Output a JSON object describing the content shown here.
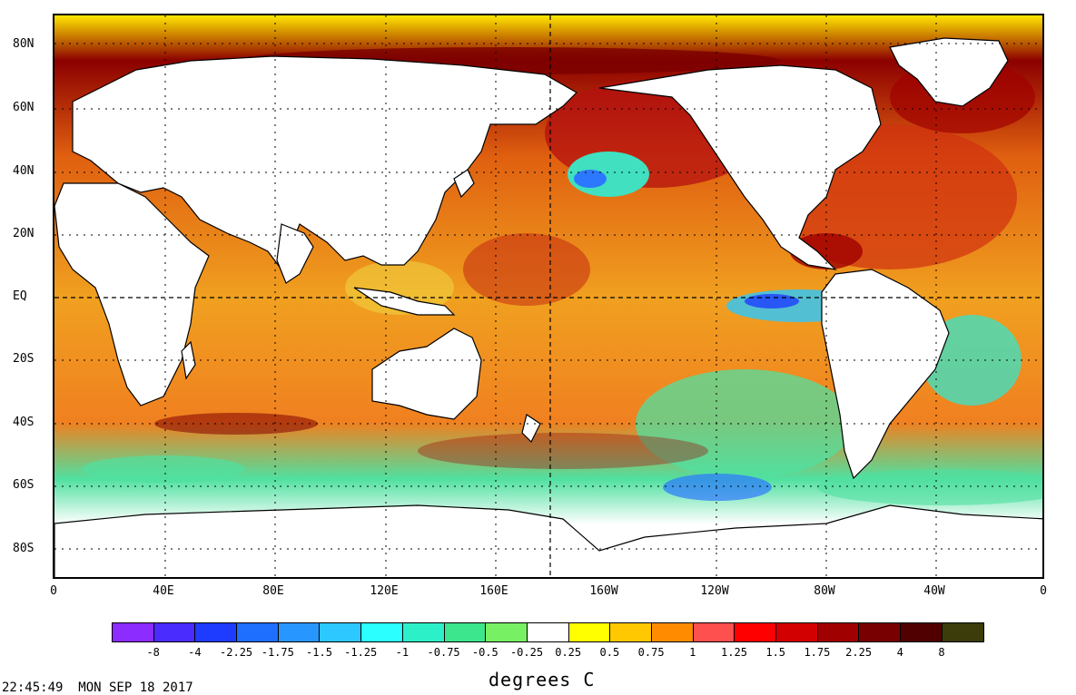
{
  "lat_labels": [
    "80N",
    "60N",
    "40N",
    "20N",
    "EQ",
    "20S",
    "40S",
    "60S",
    "80S"
  ],
  "lon_labels": [
    "0",
    "40E",
    "80E",
    "120E",
    "160E",
    "160W",
    "120W",
    "80W",
    "40W",
    "0"
  ],
  "colorbar": {
    "colors": [
      "#8c2cff",
      "#4b2cff",
      "#1e3cff",
      "#1e6eff",
      "#2896ff",
      "#2cc8ff",
      "#2cffff",
      "#2cf0c8",
      "#3ce68c",
      "#78f064",
      "#ffffff",
      "#ffff00",
      "#ffc800",
      "#ff8c00",
      "#ff5050",
      "#ff0000",
      "#d20000",
      "#a00000",
      "#780000",
      "#500000",
      "#3c3c0a"
    ],
    "labels": [
      "-8",
      "-4",
      "-2.25",
      "-1.75",
      "-1.5",
      "-1.25",
      "-1",
      "-0.75",
      "-0.5",
      "-0.25",
      "0.25",
      "0.5",
      "0.75",
      "1",
      "1.25",
      "1.5",
      "1.75",
      "2.25",
      "4",
      "8"
    ]
  },
  "units": "degrees C",
  "timestamp": "22:45:49  MON SEP 18 2017"
}
